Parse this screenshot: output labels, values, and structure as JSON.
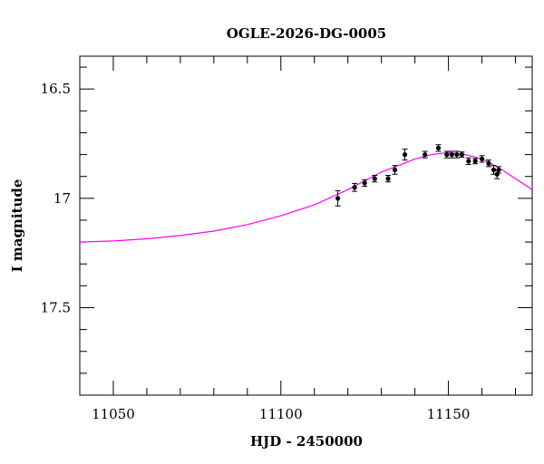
{
  "chart_data": {
    "type": "scatter",
    "title": "OGLE-2026-DG-0005",
    "xlabel": "HJD - 2450000",
    "ylabel": "I magnitude",
    "xlim": [
      11040,
      11175
    ],
    "ylim": [
      17.9,
      16.35
    ],
    "y_inverted": true,
    "x_ticks": [
      11050,
      11100,
      11150
    ],
    "x_tick_labels": [
      "11050",
      "11100",
      "11150"
    ],
    "y_ticks": [
      16.5,
      17,
      17.5
    ],
    "y_tick_labels": [
      "16.5",
      "17",
      "17.5"
    ],
    "grid": false,
    "colors": {
      "model": "#ff00ff",
      "points": "#000000",
      "axes": "#000000"
    },
    "observations": [
      {
        "x": 11117.0,
        "y": 17.0,
        "err": 0.035
      },
      {
        "x": 11122.0,
        "y": 16.95,
        "err": 0.018
      },
      {
        "x": 11125.0,
        "y": 16.93,
        "err": 0.015
      },
      {
        "x": 11128.0,
        "y": 16.91,
        "err": 0.015
      },
      {
        "x": 11132.0,
        "y": 16.91,
        "err": 0.015
      },
      {
        "x": 11134.0,
        "y": 16.87,
        "err": 0.02
      },
      {
        "x": 11137.0,
        "y": 16.8,
        "err": 0.025
      },
      {
        "x": 11143.0,
        "y": 16.8,
        "err": 0.015
      },
      {
        "x": 11147.0,
        "y": 16.77,
        "err": 0.015
      },
      {
        "x": 11149.5,
        "y": 16.8,
        "err": 0.015
      },
      {
        "x": 11151.0,
        "y": 16.8,
        "err": 0.015
      },
      {
        "x": 11152.5,
        "y": 16.8,
        "err": 0.015
      },
      {
        "x": 11154.0,
        "y": 16.8,
        "err": 0.012
      },
      {
        "x": 11156.0,
        "y": 16.83,
        "err": 0.015
      },
      {
        "x": 11158.0,
        "y": 16.83,
        "err": 0.012
      },
      {
        "x": 11160.0,
        "y": 16.82,
        "err": 0.015
      },
      {
        "x": 11162.0,
        "y": 16.84,
        "err": 0.015
      },
      {
        "x": 11163.5,
        "y": 16.87,
        "err": 0.02
      },
      {
        "x": 11164.5,
        "y": 16.89,
        "err": 0.02
      },
      {
        "x": 11165.0,
        "y": 16.87,
        "err": 0.015
      }
    ],
    "model_curve": {
      "x": [
        11040,
        11050,
        11060,
        11070,
        11080,
        11090,
        11100,
        11110,
        11120,
        11130,
        11140,
        11145,
        11150,
        11155,
        11160,
        11165,
        11170,
        11175
      ],
      "y": [
        17.2,
        17.195,
        17.185,
        17.17,
        17.15,
        17.12,
        17.08,
        17.03,
        16.96,
        16.88,
        16.82,
        16.8,
        16.79,
        16.8,
        16.82,
        16.86,
        16.91,
        16.96
      ]
    }
  }
}
